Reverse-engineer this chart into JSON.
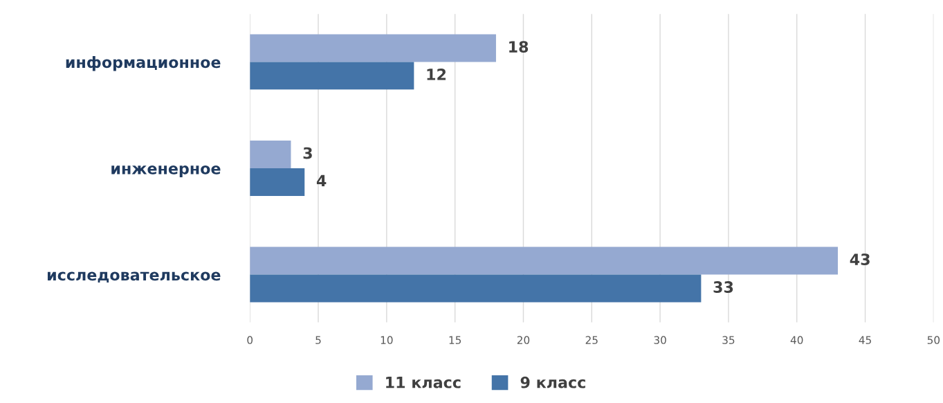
{
  "chart_data": {
    "type": "bar",
    "orientation": "horizontal",
    "categories": [
      "информационное",
      "инженерное",
      "исследовательское"
    ],
    "series": [
      {
        "name": "11 класс",
        "color": "#95a9d1",
        "values": [
          18,
          3,
          43
        ]
      },
      {
        "name": "9 класс",
        "color": "#4474a8",
        "values": [
          12,
          4,
          33
        ]
      }
    ],
    "xlim": [
      0,
      50
    ],
    "xticks": [
      0,
      5,
      10,
      15,
      20,
      25,
      30,
      35,
      40,
      45,
      50
    ],
    "grid": "x",
    "legend": "bottom",
    "data_labels": true
  }
}
